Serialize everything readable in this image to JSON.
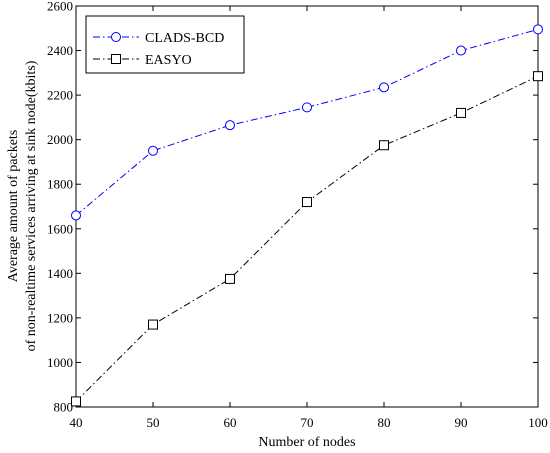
{
  "chart_data": {
    "type": "line",
    "x": [
      40,
      50,
      60,
      70,
      80,
      90,
      100
    ],
    "xlim": [
      40,
      100
    ],
    "ylim": [
      800,
      2600
    ],
    "xticks": [
      40,
      50,
      60,
      70,
      80,
      90,
      100
    ],
    "yticks": [
      800,
      1000,
      1200,
      1400,
      1600,
      1800,
      2000,
      2200,
      2400,
      2600
    ],
    "xlabel": "Number of nodes",
    "ylabel_lines": [
      "Average amount of packets",
      "of non-realtime services arriving at sink node(kbits)"
    ],
    "grid": false,
    "legend_position": "top-left",
    "series": [
      {
        "name": "CLADS-BCD",
        "values": [
          1660,
          1950,
          2065,
          2145,
          2235,
          2400,
          2495
        ],
        "color": "#0000ff",
        "marker": "circle",
        "dash": "dash-dot"
      },
      {
        "name": "EASYO",
        "values": [
          825,
          1170,
          1375,
          1720,
          1975,
          2120,
          2285
        ],
        "color": "#000000",
        "marker": "square",
        "dash": "dash-dot"
      }
    ]
  }
}
